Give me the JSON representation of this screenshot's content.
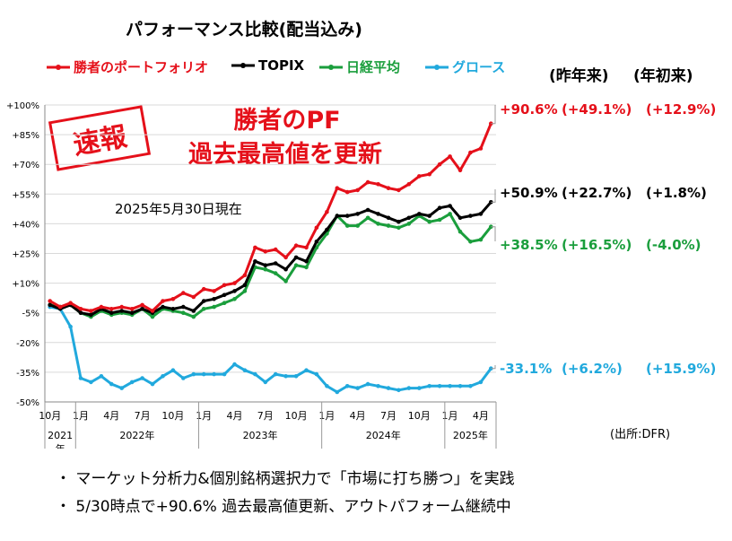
{
  "title": "パフォーマンス比較(配当込み)",
  "legend": [
    {
      "label": "勝者のポートフォリオ",
      "color": "#e5101a"
    },
    {
      "label": "TOPIX",
      "color": "#000000"
    },
    {
      "label": "日経平均",
      "color": "#1a9e3c"
    },
    {
      "label": "グロース",
      "color": "#21a9dd"
    }
  ],
  "headers": {
    "prev_year": "(昨年来)",
    "ytd": "(年初来)"
  },
  "headline": {
    "line1": "勝者のPF",
    "line2": "過去最高値を更新"
  },
  "stamp": "速報",
  "as_of": "2025年5月30日現在",
  "returns": [
    {
      "total": "+90.6%",
      "prev_year": "(+49.1%)",
      "ytd": "(+12.9%)",
      "color": "#e5101a"
    },
    {
      "total": "+50.9%",
      "prev_year": "(+22.7%)",
      "ytd": "(+1.8%)",
      "color": "#000000"
    },
    {
      "total": "+38.5%",
      "prev_year": "(+16.5%)",
      "ytd": "(-4.0%)",
      "color": "#1a9e3c"
    },
    {
      "total": "-33.1%",
      "prev_year": "(+6.2%)",
      "ytd": "(+15.9%)",
      "color": "#21a9dd"
    }
  ],
  "source": "(出所:DFR)",
  "bullets": [
    "・ マーケット分析力&個別銘柄選択力で「市場に打ち勝つ」を実践",
    "・ 5/30時点で+90.6% 過去最高値更新、アウトパフォーム継続中"
  ],
  "chart_data": {
    "type": "line",
    "x": [
      "2021-10",
      "2021-11",
      "2021-12",
      "2022-01",
      "2022-02",
      "2022-03",
      "2022-04",
      "2022-05",
      "2022-06",
      "2022-07",
      "2022-08",
      "2022-09",
      "2022-10",
      "2022-11",
      "2022-12",
      "2023-01",
      "2023-02",
      "2023-03",
      "2023-04",
      "2023-05",
      "2023-06",
      "2023-07",
      "2023-08",
      "2023-09",
      "2023-10",
      "2023-11",
      "2023-12",
      "2024-01",
      "2024-02",
      "2024-03",
      "2024-04",
      "2024-05",
      "2024-06",
      "2024-07",
      "2024-08",
      "2024-09",
      "2024-10",
      "2024-11",
      "2024-12",
      "2025-01",
      "2025-02",
      "2025-03",
      "2025-04",
      "2025-05"
    ],
    "x_tick_labels": [
      "10月",
      "1月",
      "4月",
      "7月",
      "10月",
      "1月",
      "4月",
      "7月",
      "10月",
      "1月",
      "4月",
      "7月",
      "10月",
      "1月",
      "4月"
    ],
    "x_tick_positions": [
      0,
      3,
      6,
      9,
      12,
      15,
      18,
      21,
      24,
      27,
      30,
      33,
      36,
      39,
      42
    ],
    "year_labels": [
      "2021\n年",
      "2022年",
      "2023年",
      "2024年",
      "2025年"
    ],
    "y_ticks": [
      "+100%",
      "+85%",
      "+70%",
      "+55%",
      "+40%",
      "+25%",
      "+10%",
      "-5%",
      "-20%",
      "-35%",
      "-50%"
    ],
    "ylim": [
      -50,
      100
    ],
    "series": [
      {
        "name": "勝者のポートフォリオ",
        "color": "#e5101a",
        "values": [
          1,
          -2,
          0,
          -3,
          -4,
          -2,
          -3,
          -2,
          -3,
          -1,
          -4,
          1,
          2,
          5,
          3,
          7,
          6,
          9,
          10,
          14,
          28,
          26,
          27,
          23,
          29,
          28,
          38,
          46,
          58,
          56,
          57,
          61,
          60,
          58,
          57,
          60,
          64,
          65,
          70,
          74,
          67,
          76,
          78,
          90.6
        ]
      },
      {
        "name": "TOPIX",
        "color": "#000000",
        "values": [
          -1,
          -3,
          -1,
          -5,
          -6,
          -3,
          -5,
          -4,
          -5,
          -3,
          -5,
          -2,
          -3,
          -2,
          -4,
          1,
          2,
          4,
          6,
          9,
          21,
          19,
          20,
          17,
          23,
          21,
          31,
          37,
          44,
          44,
          45,
          47,
          45,
          43,
          41,
          43,
          45,
          44,
          48,
          49,
          43,
          44,
          45,
          50.9
        ]
      },
      {
        "name": "日経平均",
        "color": "#1a9e3c",
        "values": [
          -1,
          -2,
          -1,
          -5,
          -7,
          -4,
          -6,
          -5,
          -6,
          -3,
          -7,
          -3,
          -4,
          -5,
          -7,
          -3,
          -2,
          0,
          2,
          6,
          18,
          17,
          15,
          11,
          19,
          18,
          28,
          35,
          44,
          39,
          39,
          43,
          40,
          39,
          38,
          40,
          44,
          41,
          42,
          45,
          36,
          31,
          32,
          38.5
        ]
      },
      {
        "name": "グロース",
        "color": "#21a9dd",
        "values": [
          -2,
          -3,
          -12,
          -38,
          -40,
          -37,
          -41,
          -43,
          -40,
          -38,
          -41,
          -37,
          -34,
          -38,
          -36,
          -36,
          -36,
          -36,
          -31,
          -34,
          -36,
          -40,
          -36,
          -37,
          -37,
          -34,
          -36,
          -42,
          -45,
          -42,
          -43,
          -41,
          -42,
          -43,
          -44,
          -43,
          -43,
          -42,
          -42,
          -42,
          -42,
          -42,
          -40,
          -33.1
        ]
      }
    ]
  }
}
